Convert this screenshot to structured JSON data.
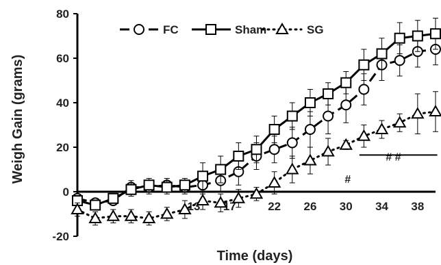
{
  "chart_data": {
    "type": "line",
    "title": "",
    "xlabel": "Time (days)",
    "ylabel": "Weigh Gain (grams)",
    "xlim": [
      0,
      40
    ],
    "ylim": [
      -20,
      80
    ],
    "x_ticks": [
      {
        "value": 13,
        "label": "13"
      },
      {
        "value": 17,
        "label": "17"
      },
      {
        "value": 22,
        "label": "22"
      },
      {
        "value": 26,
        "label": "26"
      },
      {
        "value": 30,
        "label": "30"
      },
      {
        "value": 34,
        "label": "34"
      },
      {
        "value": 38,
        "label": "38"
      }
    ],
    "y_ticks": [
      {
        "value": -20,
        "label": "-20"
      },
      {
        "value": 0,
        "label": "0"
      },
      {
        "value": 20,
        "label": "20"
      },
      {
        "value": 40,
        "label": "40"
      },
      {
        "value": 60,
        "label": "60"
      },
      {
        "value": 80,
        "label": "80"
      }
    ],
    "legend_position": "top",
    "grid": false,
    "series": [
      {
        "name": "FC",
        "marker": "circle",
        "line_style": "dashed",
        "x": [
          0,
          2,
          4,
          6,
          8,
          10,
          12,
          14,
          16,
          18,
          20,
          22,
          24,
          26,
          28,
          30,
          32,
          34,
          36,
          38,
          40
        ],
        "y": [
          -3,
          -5,
          -4,
          2,
          2,
          3,
          2,
          3,
          5,
          9,
          16,
          19,
          22,
          28,
          34,
          39,
          46,
          57,
          59,
          63,
          64
        ],
        "err": [
          2,
          2,
          2,
          3,
          3,
          3,
          3,
          4,
          5,
          6,
          6,
          6,
          7,
          8,
          8,
          8,
          7,
          7,
          7,
          7,
          7
        ]
      },
      {
        "name": "Sham",
        "marker": "square",
        "line_style": "solid",
        "x": [
          0,
          2,
          4,
          6,
          8,
          10,
          12,
          14,
          16,
          18,
          20,
          22,
          24,
          26,
          28,
          30,
          32,
          34,
          36,
          38,
          40
        ],
        "y": [
          -4,
          -6,
          -3,
          1,
          3,
          2,
          3,
          7,
          10,
          16,
          19,
          28,
          34,
          40,
          44,
          49,
          57,
          62,
          69,
          70,
          71
        ],
        "err": [
          2,
          2,
          2,
          3,
          3,
          3,
          3,
          6,
          6,
          6,
          6,
          6,
          6,
          6,
          5,
          5,
          7,
          7,
          7,
          7,
          7
        ]
      },
      {
        "name": "SG",
        "marker": "triangle",
        "line_style": "dotted",
        "x": [
          0,
          2,
          4,
          6,
          8,
          10,
          12,
          14,
          16,
          18,
          20,
          22,
          24,
          26,
          28,
          30,
          32,
          34,
          36,
          38,
          40
        ],
        "y": [
          -8,
          -12,
          -11,
          -11,
          -12,
          -10,
          -8,
          -4,
          -5,
          -3,
          -1,
          4,
          10,
          14,
          18,
          21,
          25,
          28,
          31,
          35,
          36
        ],
        "err": [
          3,
          3,
          3,
          3,
          3,
          3,
          4,
          4,
          4,
          4,
          3,
          5,
          6,
          6,
          6,
          2,
          5,
          4,
          4,
          9,
          9
        ]
      }
    ],
    "annotations": [
      {
        "text": "#",
        "x": 30.2,
        "y": 4
      },
      {
        "text": "# #",
        "x": 35.3,
        "y": 14
      }
    ]
  }
}
